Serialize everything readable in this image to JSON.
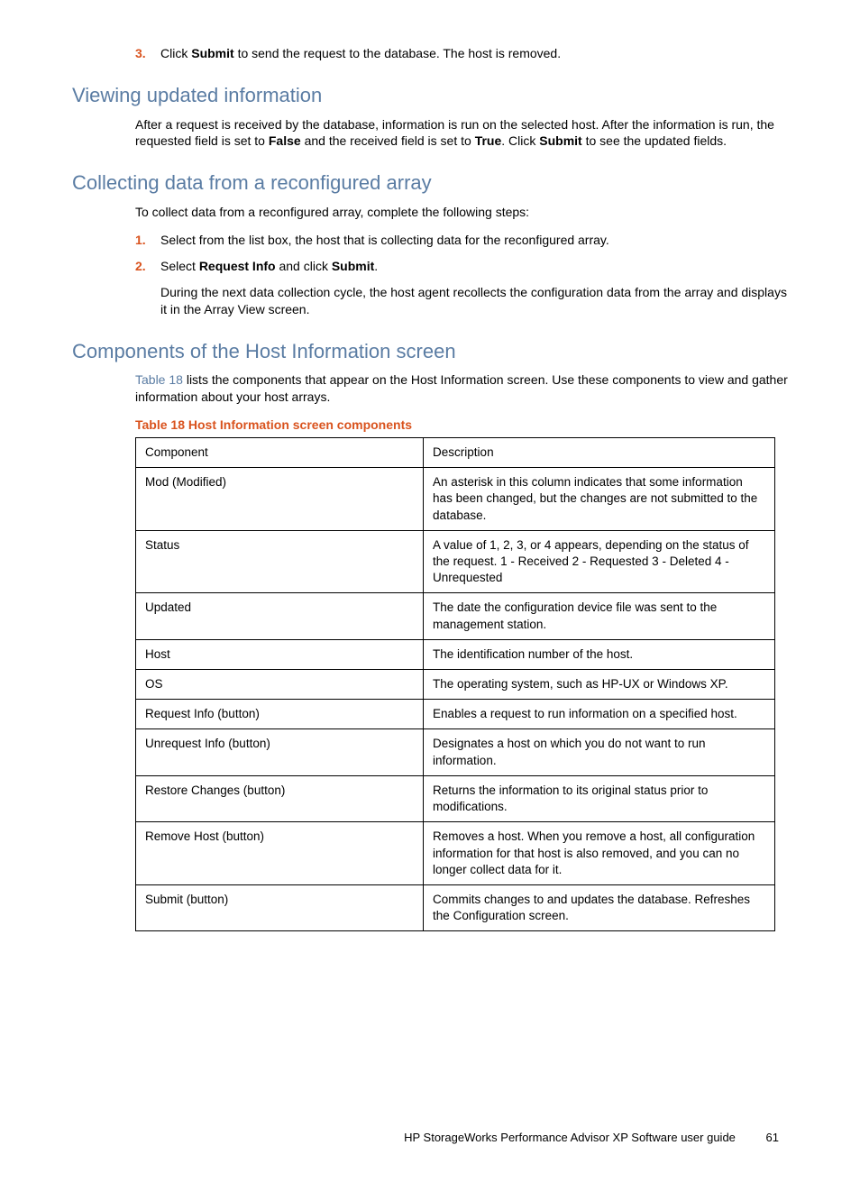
{
  "colors": {
    "heading": "#5a7ca3",
    "accent": "#d9531e",
    "link": "#5a7ca3",
    "text": "#000000",
    "border": "#000000",
    "background": "#ffffff"
  },
  "topStep": {
    "num": "3.",
    "before": "Click ",
    "bold": "Submit",
    "after": " to send the request to the database.  The host is removed."
  },
  "section1": {
    "heading": "Viewing updated information",
    "para": {
      "t1": "After a request is received by the database, information is run on the selected host.  After the information is run, the requested field is set to ",
      "b1": "False",
      "t2": " and the received field is set to ",
      "b2": "True",
      "t3": ".  Click ",
      "b3": "Submit",
      "t4": " to see the updated fields."
    }
  },
  "section2": {
    "heading": "Collecting data from a reconfigured array",
    "intro": "To collect data from a reconfigured array, complete the following steps:",
    "step1": {
      "num": "1.",
      "text": "Select from the list box, the host that is collecting data for the reconfigured array."
    },
    "step2": {
      "num": "2.",
      "t1": "Select ",
      "b1": "Request Info",
      "t2": " and click ",
      "b2": "Submit",
      "t3": "."
    },
    "sub": "During the next data collection cycle, the host agent recollects the configuration data from the array and displays it in the Array View screen."
  },
  "section3": {
    "heading": "Components of the Host Information screen",
    "para": {
      "link": "Table 18",
      "rest": " lists the components that appear on the Host Information screen.  Use these components to view and gather information about your host arrays."
    },
    "tableCaption": "Table 18 Host Information screen components",
    "headerRow": {
      "c": "Component",
      "d": "Description"
    },
    "rows": [
      {
        "c": "Mod (Modified)",
        "d": "An asterisk in this column indicates that some information has been changed, but the changes are not submitted to the database."
      },
      {
        "c": "Status",
        "d": "A value of 1, 2, 3, or 4 appears, depending on the status of the request.  1 - Received 2 - Requested 3 - Deleted 4 - Unrequested"
      },
      {
        "c": "Updated",
        "d": "The date the configuration device file was sent to the management station."
      },
      {
        "c": "Host",
        "d": "The identification number of the host."
      },
      {
        "c": "OS",
        "d": "The operating system, such as HP-UX or Windows XP."
      },
      {
        "c": "Request Info (button)",
        "d": "Enables a request to run information on a specified host."
      },
      {
        "c": "Unrequest Info (button)",
        "d": "Designates a host on which you do not want to run information."
      },
      {
        "c": "Restore Changes (button)",
        "d": "Returns the information to its original status prior to modifications."
      },
      {
        "c": "Remove Host (button)",
        "d": "Removes a host.  When you remove a host, all configuration information for that host is also removed, and you can no longer collect data for it."
      },
      {
        "c": "Submit (button)",
        "d": "Commits changes to and updates the database.  Refreshes the Configuration screen."
      }
    ]
  },
  "footer": {
    "title": "HP StorageWorks Performance Advisor XP Software user guide",
    "page": "61"
  }
}
